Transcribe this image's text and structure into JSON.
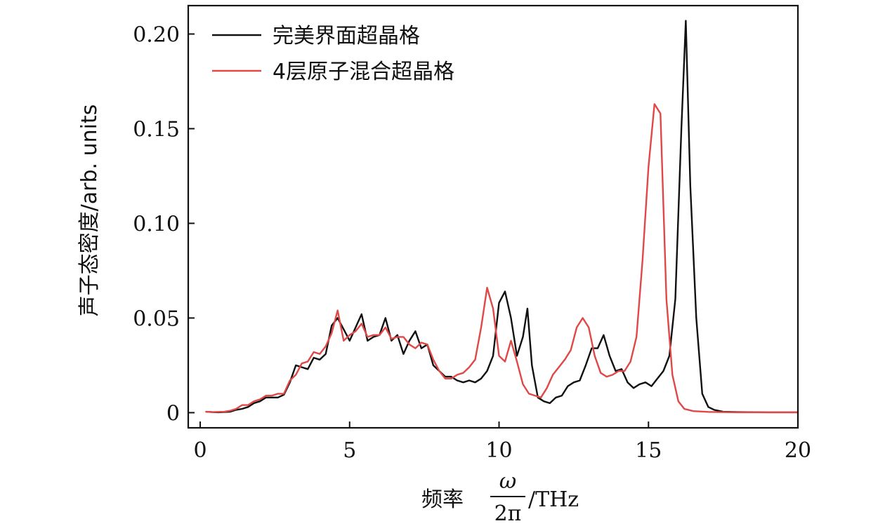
{
  "chart_data": {
    "type": "line",
    "xlabel": {
      "prefix": "频率",
      "numerator": "ω",
      "denominator": "2π",
      "suffix": "/THz"
    },
    "ylabel": "声子态密度/arb. units",
    "xlim": [
      -0.4,
      20
    ],
    "ylim": [
      -0.008,
      0.215
    ],
    "x_ticks": [
      0,
      5,
      10,
      15,
      20
    ],
    "x_tick_labels": [
      "0",
      "5",
      "10",
      "15",
      "20"
    ],
    "y_ticks": [
      0,
      0.05,
      0.1,
      0.15,
      0.2
    ],
    "y_tick_labels": [
      "0",
      "0.05",
      "0.10",
      "0.15",
      "0.20"
    ],
    "grid": false,
    "legend_position": "top-left",
    "series": [
      {
        "name": "完美界面超晶格",
        "color": "#111111",
        "points": [
          [
            0.2,
            0.0005
          ],
          [
            0.4,
            0.0003
          ],
          [
            0.6,
            0.0002
          ],
          [
            0.8,
            0.0003
          ],
          [
            1.0,
            0.0005
          ],
          [
            1.2,
            0.0015
          ],
          [
            1.4,
            0.002
          ],
          [
            1.6,
            0.003
          ],
          [
            1.8,
            0.005
          ],
          [
            2.0,
            0.006
          ],
          [
            2.2,
            0.008
          ],
          [
            2.4,
            0.008
          ],
          [
            2.6,
            0.008
          ],
          [
            2.8,
            0.0095
          ],
          [
            3.0,
            0.016
          ],
          [
            3.2,
            0.025
          ],
          [
            3.4,
            0.024
          ],
          [
            3.6,
            0.023
          ],
          [
            3.8,
            0.029
          ],
          [
            4.0,
            0.028
          ],
          [
            4.2,
            0.031
          ],
          [
            4.4,
            0.046
          ],
          [
            4.6,
            0.05
          ],
          [
            4.8,
            0.044
          ],
          [
            5.0,
            0.038
          ],
          [
            5.2,
            0.045
          ],
          [
            5.4,
            0.052
          ],
          [
            5.6,
            0.038
          ],
          [
            5.8,
            0.04
          ],
          [
            6.0,
            0.041
          ],
          [
            6.2,
            0.05
          ],
          [
            6.4,
            0.038
          ],
          [
            6.6,
            0.041
          ],
          [
            6.8,
            0.031
          ],
          [
            7.0,
            0.038
          ],
          [
            7.2,
            0.043
          ],
          [
            7.4,
            0.034
          ],
          [
            7.6,
            0.036
          ],
          [
            7.8,
            0.025
          ],
          [
            8.0,
            0.022
          ],
          [
            8.2,
            0.019
          ],
          [
            8.4,
            0.019
          ],
          [
            8.6,
            0.017
          ],
          [
            8.8,
            0.016
          ],
          [
            9.0,
            0.017
          ],
          [
            9.2,
            0.016
          ],
          [
            9.4,
            0.018
          ],
          [
            9.6,
            0.022
          ],
          [
            9.8,
            0.03
          ],
          [
            10.0,
            0.058
          ],
          [
            10.2,
            0.064
          ],
          [
            10.4,
            0.05
          ],
          [
            10.6,
            0.03
          ],
          [
            10.8,
            0.04
          ],
          [
            10.95,
            0.055
          ],
          [
            11.1,
            0.025
          ],
          [
            11.3,
            0.008
          ],
          [
            11.5,
            0.006
          ],
          [
            11.7,
            0.005
          ],
          [
            11.9,
            0.008
          ],
          [
            12.1,
            0.009
          ],
          [
            12.3,
            0.014
          ],
          [
            12.5,
            0.016
          ],
          [
            12.7,
            0.017
          ],
          [
            12.9,
            0.025
          ],
          [
            13.1,
            0.034
          ],
          [
            13.3,
            0.034
          ],
          [
            13.5,
            0.041
          ],
          [
            13.7,
            0.03
          ],
          [
            13.9,
            0.022
          ],
          [
            14.1,
            0.023
          ],
          [
            14.3,
            0.016
          ],
          [
            14.5,
            0.013
          ],
          [
            14.7,
            0.015
          ],
          [
            14.9,
            0.016
          ],
          [
            15.1,
            0.014
          ],
          [
            15.3,
            0.018
          ],
          [
            15.5,
            0.022
          ],
          [
            15.7,
            0.03
          ],
          [
            15.9,
            0.06
          ],
          [
            16.1,
            0.15
          ],
          [
            16.25,
            0.207
          ],
          [
            16.4,
            0.12
          ],
          [
            16.6,
            0.05
          ],
          [
            16.8,
            0.01
          ],
          [
            17.0,
            0.003
          ],
          [
            17.2,
            0.0015
          ],
          [
            17.5,
            0.0005
          ],
          [
            18.0,
            0.0003
          ],
          [
            19.0,
            0.0002
          ],
          [
            20.0,
            0.0002
          ]
        ]
      },
      {
        "name": "4层原子混合超晶格",
        "color": "#e04848",
        "points": [
          [
            0.2,
            0.0005
          ],
          [
            0.4,
            0.0003
          ],
          [
            0.6,
            0.0004
          ],
          [
            0.8,
            0.0005
          ],
          [
            1.0,
            0.001
          ],
          [
            1.2,
            0.002
          ],
          [
            1.4,
            0.004
          ],
          [
            1.6,
            0.004
          ],
          [
            1.8,
            0.006
          ],
          [
            2.0,
            0.007
          ],
          [
            2.2,
            0.009
          ],
          [
            2.4,
            0.009
          ],
          [
            2.6,
            0.01
          ],
          [
            2.8,
            0.01
          ],
          [
            3.0,
            0.017
          ],
          [
            3.2,
            0.02
          ],
          [
            3.4,
            0.026
          ],
          [
            3.6,
            0.027
          ],
          [
            3.8,
            0.032
          ],
          [
            4.0,
            0.031
          ],
          [
            4.2,
            0.035
          ],
          [
            4.4,
            0.042
          ],
          [
            4.6,
            0.054
          ],
          [
            4.8,
            0.038
          ],
          [
            5.0,
            0.041
          ],
          [
            5.2,
            0.043
          ],
          [
            5.4,
            0.047
          ],
          [
            5.6,
            0.04
          ],
          [
            5.8,
            0.041
          ],
          [
            6.0,
            0.041
          ],
          [
            6.2,
            0.045
          ],
          [
            6.4,
            0.039
          ],
          [
            6.6,
            0.04
          ],
          [
            6.8,
            0.04
          ],
          [
            7.0,
            0.036
          ],
          [
            7.2,
            0.034
          ],
          [
            7.4,
            0.037
          ],
          [
            7.6,
            0.036
          ],
          [
            7.8,
            0.028
          ],
          [
            8.0,
            0.022
          ],
          [
            8.2,
            0.018
          ],
          [
            8.4,
            0.018
          ],
          [
            8.6,
            0.02
          ],
          [
            8.8,
            0.021
          ],
          [
            9.0,
            0.024
          ],
          [
            9.2,
            0.028
          ],
          [
            9.4,
            0.045
          ],
          [
            9.6,
            0.066
          ],
          [
            9.8,
            0.055
          ],
          [
            10.0,
            0.03
          ],
          [
            10.2,
            0.027
          ],
          [
            10.4,
            0.038
          ],
          [
            10.6,
            0.027
          ],
          [
            10.8,
            0.015
          ],
          [
            11.0,
            0.01
          ],
          [
            11.2,
            0.009
          ],
          [
            11.4,
            0.008
          ],
          [
            11.6,
            0.013
          ],
          [
            11.8,
            0.02
          ],
          [
            12.0,
            0.024
          ],
          [
            12.2,
            0.028
          ],
          [
            12.4,
            0.033
          ],
          [
            12.6,
            0.045
          ],
          [
            12.8,
            0.05
          ],
          [
            13.0,
            0.045
          ],
          [
            13.2,
            0.03
          ],
          [
            13.4,
            0.021
          ],
          [
            13.6,
            0.019
          ],
          [
            13.8,
            0.02
          ],
          [
            14.0,
            0.022
          ],
          [
            14.2,
            0.022
          ],
          [
            14.4,
            0.027
          ],
          [
            14.6,
            0.04
          ],
          [
            14.8,
            0.08
          ],
          [
            15.0,
            0.13
          ],
          [
            15.2,
            0.163
          ],
          [
            15.4,
            0.158
          ],
          [
            15.6,
            0.06
          ],
          [
            15.8,
            0.02
          ],
          [
            16.0,
            0.006
          ],
          [
            16.2,
            0.002
          ],
          [
            16.5,
            0.0008
          ],
          [
            17.0,
            0.0004
          ],
          [
            18.0,
            0.0002
          ],
          [
            20.0,
            0.0002
          ]
        ]
      }
    ]
  }
}
